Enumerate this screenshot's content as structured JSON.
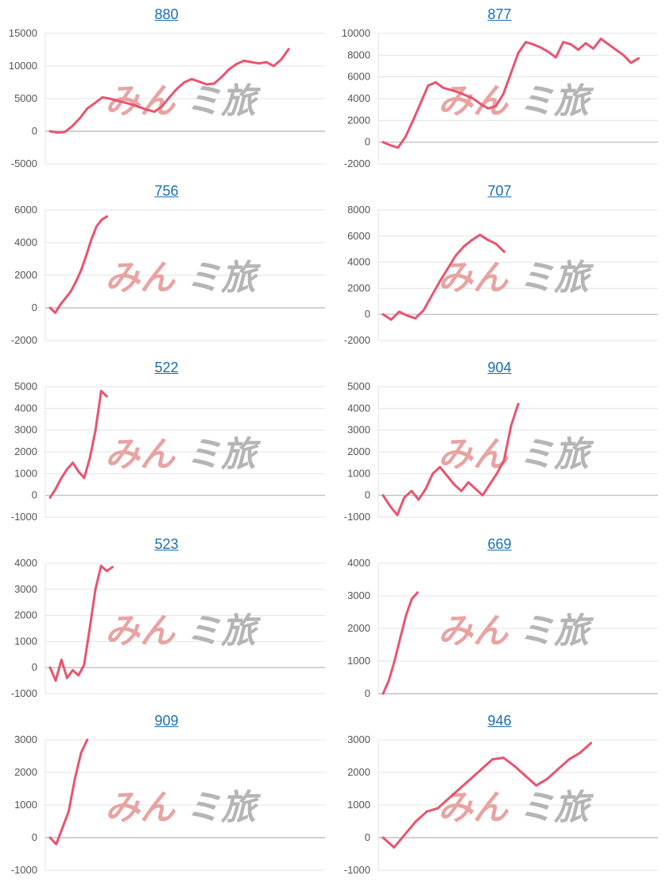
{
  "colors": {
    "line": "#e8546f",
    "grid": "#e3e3e3",
    "zero_line": "#b5b5b5",
    "link": "#1a6fb3",
    "watermark_left": "#e8a3a3",
    "watermark_right": "#b5b5b5"
  },
  "chart_data": [
    {
      "type": "line",
      "title": "880",
      "ylim": [
        -5000,
        15000
      ],
      "yticks": [
        -5000,
        0,
        5000,
        10000,
        15000
      ],
      "grid": true,
      "values": [
        0,
        -200,
        -100,
        800,
        2000,
        3500,
        4300,
        5200,
        5000,
        4700,
        4400,
        4100,
        3700,
        3300,
        3000,
        3800,
        5200,
        6500,
        7500,
        8000,
        7600,
        7200,
        7300,
        8300,
        9500,
        10300,
        10800,
        10600,
        10400,
        10600,
        10000,
        11000,
        12600
      ]
    },
    {
      "type": "line",
      "title": "877",
      "ylim": [
        -2000,
        10000
      ],
      "yticks": [
        -2000,
        0,
        2000,
        4000,
        6000,
        8000,
        10000
      ],
      "grid": true,
      "values": [
        0,
        -300,
        -500,
        500,
        2000,
        3600,
        5200,
        5500,
        5000,
        4800,
        4600,
        4300,
        4000,
        3500,
        3100,
        3300,
        4400,
        6300,
        8200,
        9200,
        9000,
        8700,
        8300,
        7800,
        9200,
        9000,
        8500,
        9100,
        8600,
        9500,
        9000,
        8500,
        8000,
        7300,
        7700
      ]
    },
    {
      "type": "line",
      "title": "756",
      "ylim": [
        -2000,
        6000
      ],
      "yticks": [
        -2000,
        0,
        2000,
        4000,
        6000
      ],
      "grid": true,
      "values": [
        0,
        -300,
        200,
        600,
        1000,
        1600,
        2300,
        3200,
        4200,
        5000,
        5400,
        5600
      ]
    },
    {
      "type": "line",
      "title": "707",
      "ylim": [
        -2000,
        8000
      ],
      "yticks": [
        -2000,
        0,
        2000,
        4000,
        6000,
        8000
      ],
      "grid": true,
      "values": [
        0,
        -400,
        200,
        -100,
        -300,
        300,
        1400,
        2500,
        3500,
        4500,
        5200,
        5700,
        6100,
        5700,
        5400,
        4800
      ]
    },
    {
      "type": "line",
      "title": "522",
      "ylim": [
        -1000,
        5000
      ],
      "yticks": [
        -1000,
        0,
        1000,
        2000,
        3000,
        4000,
        5000
      ],
      "grid": true,
      "values": [
        -100,
        300,
        800,
        1200,
        1500,
        1100,
        800,
        1700,
        3000,
        4800,
        4550
      ]
    },
    {
      "type": "line",
      "title": "904",
      "ylim": [
        -1000,
        5000
      ],
      "yticks": [
        -1000,
        0,
        1000,
        2000,
        3000,
        4000,
        5000
      ],
      "grid": true,
      "values": [
        0,
        -500,
        -900,
        -100,
        200,
        -200,
        300,
        1000,
        1300,
        900,
        500,
        200,
        600,
        300,
        0,
        500,
        1000,
        1600,
        3200,
        4200
      ]
    },
    {
      "type": "line",
      "title": "523",
      "ylim": [
        -1000,
        4000
      ],
      "yticks": [
        -1000,
        0,
        1000,
        2000,
        3000,
        4000
      ],
      "grid": true,
      "values": [
        0,
        -500,
        300,
        -400,
        -100,
        -300,
        100,
        1500,
        3000,
        3900,
        3700,
        3850
      ]
    },
    {
      "type": "line",
      "title": "669",
      "ylim": [
        0,
        4000
      ],
      "yticks": [
        0,
        1000,
        2000,
        3000,
        4000
      ],
      "grid": true,
      "values": [
        0,
        400,
        1000,
        1700,
        2400,
        2900,
        3100
      ]
    },
    {
      "type": "line",
      "title": "909",
      "ylim": [
        -1000,
        3000
      ],
      "yticks": [
        -1000,
        0,
        1000,
        2000,
        3000
      ],
      "grid": true,
      "values": [
        0,
        -200,
        300,
        800,
        1800,
        2600,
        3000
      ]
    },
    {
      "type": "line",
      "title": "946",
      "ylim": [
        -1000,
        3000
      ],
      "yticks": [
        -1000,
        0,
        1000,
        2000,
        3000
      ],
      "grid": true,
      "values": [
        0,
        -300,
        100,
        500,
        800,
        900,
        1200,
        1500,
        1800,
        2100,
        2400,
        2450,
        2200,
        1900,
        1600,
        1800,
        2100,
        2400,
        2600,
        2900
      ]
    }
  ],
  "watermark": {
    "left": "みん",
    "right": "ミ旅"
  }
}
